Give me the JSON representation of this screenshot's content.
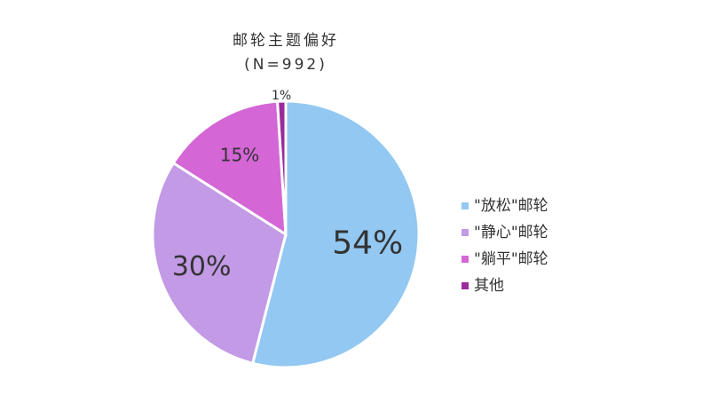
{
  "chart_data": {
    "type": "pie",
    "title": "邮轮主题偏好",
    "subtitle": "(N=992)",
    "categories": [
      "\"放松\"邮轮",
      "\"静心\"邮轮",
      "\"躺平\"邮轮",
      "其他"
    ],
    "values": [
      54,
      30,
      15,
      1
    ],
    "value_labels": [
      "54%",
      "30%",
      "15%",
      "1%"
    ],
    "colors": [
      "#92c8f2",
      "#c39ae6",
      "#d466d6",
      "#9b2a9b"
    ],
    "legend": "right"
  }
}
